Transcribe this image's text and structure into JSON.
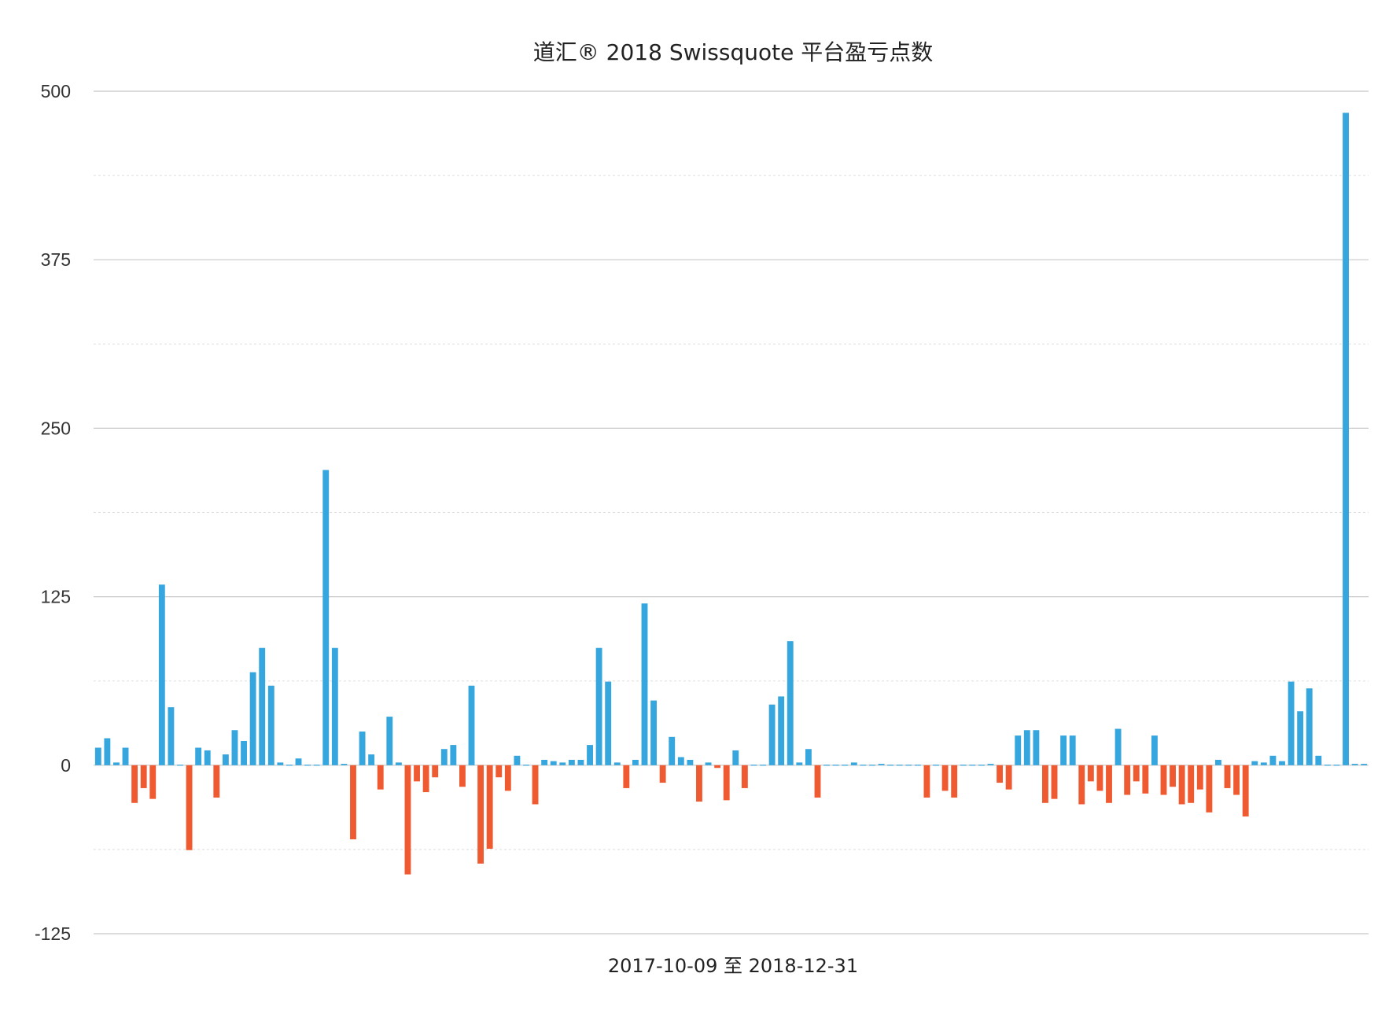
{
  "chart_data": {
    "type": "bar",
    "title": "道汇® 2018 Swissquote 平台盈亏点数",
    "xlabel": "2017-10-09 至 2018-12-31",
    "ylabel": "",
    "ylim": [
      -125,
      500
    ],
    "yticks": [
      "500",
      "375",
      "250",
      "125",
      "0",
      "-125"
    ],
    "grid": "horizontal",
    "colors": {
      "positive": "#35a6de",
      "negative": "#f05a31",
      "grid": "#c8c8c8",
      "minor_grid": "#dddddd"
    },
    "values": [
      13,
      20,
      2,
      13,
      -28,
      -17,
      -25,
      134,
      43,
      0,
      -63,
      13,
      11,
      -24,
      8,
      26,
      18,
      69,
      87,
      59,
      2,
      0,
      5,
      0,
      0,
      219,
      87,
      1,
      -55,
      25,
      8,
      -18,
      36,
      2,
      -81,
      -12,
      -20,
      -9,
      12,
      15,
      -16,
      59,
      -73,
      -62,
      -9,
      -19,
      7,
      0,
      -29,
      4,
      3,
      2,
      4,
      4,
      15,
      87,
      62,
      2,
      -17,
      4,
      120,
      48,
      -13,
      21,
      6,
      4,
      -27,
      2,
      -2,
      -26,
      11,
      -17,
      0,
      0,
      45,
      51,
      92,
      2,
      12,
      -24,
      0,
      0,
      0,
      2,
      0,
      0,
      1,
      0,
      0,
      0,
      0,
      -24,
      0,
      -19,
      -24,
      0,
      0,
      0,
      1,
      -13,
      -18,
      22,
      26,
      26,
      -28,
      -25,
      22,
      22,
      -29,
      -12,
      -19,
      -28,
      27,
      -22,
      -12,
      -21,
      22,
      -22,
      -16,
      -29,
      -28,
      -18,
      -35,
      4,
      -17,
      -22,
      -38,
      3,
      2,
      7,
      3,
      62,
      40,
      57,
      7,
      0,
      0,
      484,
      1,
      1
    ]
  }
}
